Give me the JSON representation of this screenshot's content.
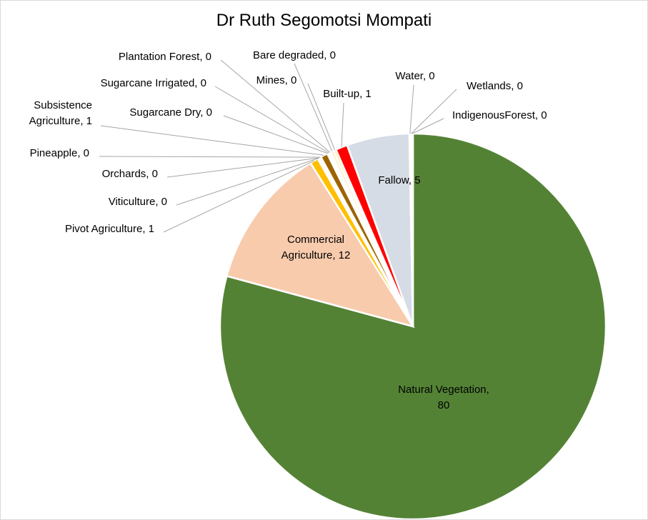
{
  "chart_data": {
    "type": "pie",
    "title": "Dr Ruth Segomotsi Mompati",
    "slices": [
      {
        "name": "Natural Vegetation",
        "label": "Natural Vegetation,",
        "value_label": "80",
        "value": 80.0,
        "color": "#548235"
      },
      {
        "name": "Commercial Agriculture",
        "label": "Commercial",
        "label2": "Agriculture, 12",
        "value": 12.0,
        "color": "#f8cbad"
      },
      {
        "name": "Pivot Agriculture",
        "label": "Pivot  Agriculture, 1",
        "value": 0.7,
        "color": "#ffc000"
      },
      {
        "name": "Viticulture",
        "label": "Viticulture, 0",
        "value": 0.1,
        "color": "#f2f2f2"
      },
      {
        "name": "Orchards",
        "label": "Orchards, 0",
        "value": 0.1,
        "color": "#ed7d31"
      },
      {
        "name": "Pineapple",
        "label": "Pineapple, 0",
        "value": 0.1,
        "color": "#bdd7ee"
      },
      {
        "name": "Subsistence Agriculture",
        "label": "Subsistence",
        "label2": "Agriculture, 1",
        "value": 0.6,
        "color": "#9c6500"
      },
      {
        "name": "Sugarcane Dry",
        "label": "Sugarcane Dry, 0",
        "value": 0.1,
        "color": "#a9d18e"
      },
      {
        "name": "Sugarcane Irrigated",
        "label": "Sugarcane Irrigated, 0",
        "value": 0.1,
        "color": "#70ad47"
      },
      {
        "name": "Plantation Forest",
        "label": "Plantation Forest, 0",
        "value": 0.1,
        "color": "#385723"
      },
      {
        "name": "Bare degraded",
        "label": "Bare degraded, 0",
        "value": 0.3,
        "color": "#fff2cc"
      },
      {
        "name": "Mines",
        "label": "Mines, 0",
        "value": 0.2,
        "color": "#ffd966"
      },
      {
        "name": "Built-up",
        "label": "Built-up, 1",
        "value": 1.0,
        "color": "#ff0000"
      },
      {
        "name": "Fallow",
        "label": "Fallow, 5",
        "value": 5.3,
        "color": "#d6dce5"
      },
      {
        "name": "Water",
        "label": "Water, 0",
        "value": 0.1,
        "color": "#2e75b6"
      },
      {
        "name": "Wetlands",
        "label": "Wetlands, 0",
        "value": 0.1,
        "color": "#9dc3e6"
      },
      {
        "name": "IndigenousForest",
        "label": "IndigenousForest, 0",
        "value": 0.1,
        "color": "#375623"
      }
    ]
  }
}
